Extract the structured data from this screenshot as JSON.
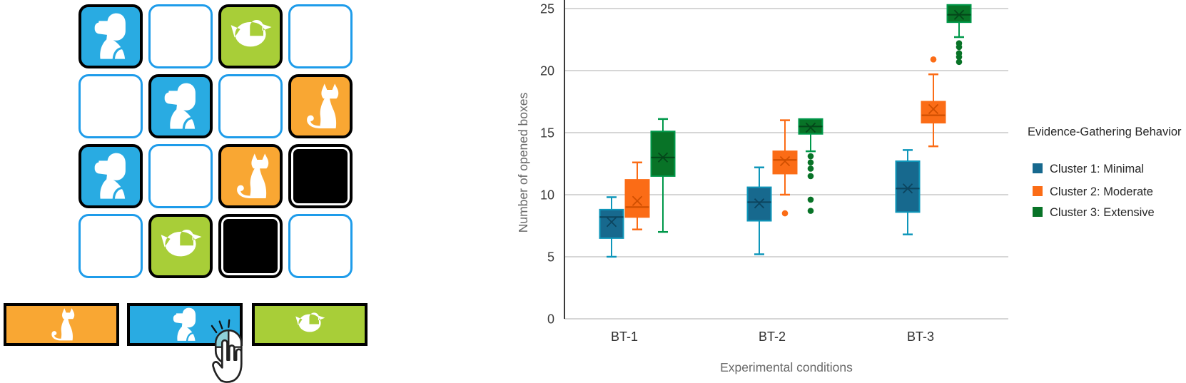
{
  "game": {
    "grid": {
      "rows": [
        [
          "dog-blue",
          "empty",
          "duck-green",
          "empty"
        ],
        [
          "empty",
          "dog-blue",
          "empty",
          "cat-orange"
        ],
        [
          "dog-blue",
          "empty",
          "cat-orange",
          "black"
        ],
        [
          "empty",
          "duck-green",
          "black",
          "empty"
        ]
      ]
    },
    "answers": [
      {
        "animal": "cat",
        "color": "orange"
      },
      {
        "animal": "dog",
        "color": "blue",
        "cursor": true
      },
      {
        "animal": "duck",
        "color": "green"
      }
    ],
    "palette": {
      "blue": "#29ABE2",
      "green": "#A8CE38",
      "orange": "#F9A733",
      "black": "#000000",
      "empty_border": "#1E9CEA",
      "icon": "#FFFFFF"
    }
  },
  "chart_data": {
    "type": "boxplot",
    "title": "",
    "xlabel": "Experimental conditions",
    "ylabel": "Number of opened boxes",
    "categories": [
      "BT-1",
      "BT-2",
      "BT-3"
    ],
    "yticks": [
      0,
      5,
      10,
      15,
      20,
      25
    ],
    "ylim": [
      0,
      25.5
    ],
    "grid": true,
    "legend_title": "Evidence-Gathering Behavior",
    "legend_position": "right",
    "series": [
      {
        "name": "Cluster 1: Minimal",
        "color": "#17698E",
        "edge": "#0E96BA",
        "dark": "#0C455F",
        "stats": [
          {
            "min": 5.0,
            "q1": 6.5,
            "median": 8.2,
            "mean": 7.8,
            "q3": 8.8,
            "max": 9.8,
            "outliers": []
          },
          {
            "min": 5.2,
            "q1": 7.9,
            "median": 9.4,
            "mean": 9.3,
            "q3": 10.6,
            "max": 12.2,
            "outliers": []
          },
          {
            "min": 6.8,
            "q1": 8.6,
            "median": 10.5,
            "mean": 10.5,
            "q3": 12.7,
            "max": 13.6,
            "outliers": []
          }
        ]
      },
      {
        "name": "Cluster 2: Moderate",
        "color": "#FB6C16",
        "edge": "#FB6C16",
        "dark": "#D04F00",
        "stats": [
          {
            "min": 7.2,
            "q1": 8.2,
            "median": 9.0,
            "mean": 9.5,
            "q3": 11.2,
            "max": 12.6,
            "outliers": []
          },
          {
            "min": 10.0,
            "q1": 11.7,
            "median": 12.8,
            "mean": 12.7,
            "q3": 13.5,
            "max": 16.0,
            "outliers": [
              8.5
            ]
          },
          {
            "min": 13.9,
            "q1": 15.8,
            "median": 16.4,
            "mean": 16.9,
            "q3": 17.5,
            "max": 19.7,
            "outliers": [
              20.9
            ]
          }
        ]
      },
      {
        "name": "Cluster 3: Extensive",
        "color": "#087327",
        "edge": "#00984A",
        "dark": "#04471A",
        "stats": [
          {
            "min": 7.0,
            "q1": 11.5,
            "median": 13.0,
            "mean": 13.0,
            "q3": 15.1,
            "max": 16.1,
            "outliers": []
          },
          {
            "min": 13.5,
            "q1": 14.9,
            "median": 15.5,
            "mean": 15.4,
            "q3": 16.1,
            "max": 16.1,
            "outliers": [
              13.1,
              12.6,
              12.1,
              11.5,
              9.6,
              8.7
            ]
          },
          {
            "min": 22.7,
            "q1": 23.9,
            "median": 24.5,
            "mean": 24.5,
            "q3": 25.3,
            "max": 25.3,
            "outliers": [
              22.2,
              21.9,
              21.4,
              21.1,
              20.7
            ]
          }
        ]
      }
    ]
  }
}
